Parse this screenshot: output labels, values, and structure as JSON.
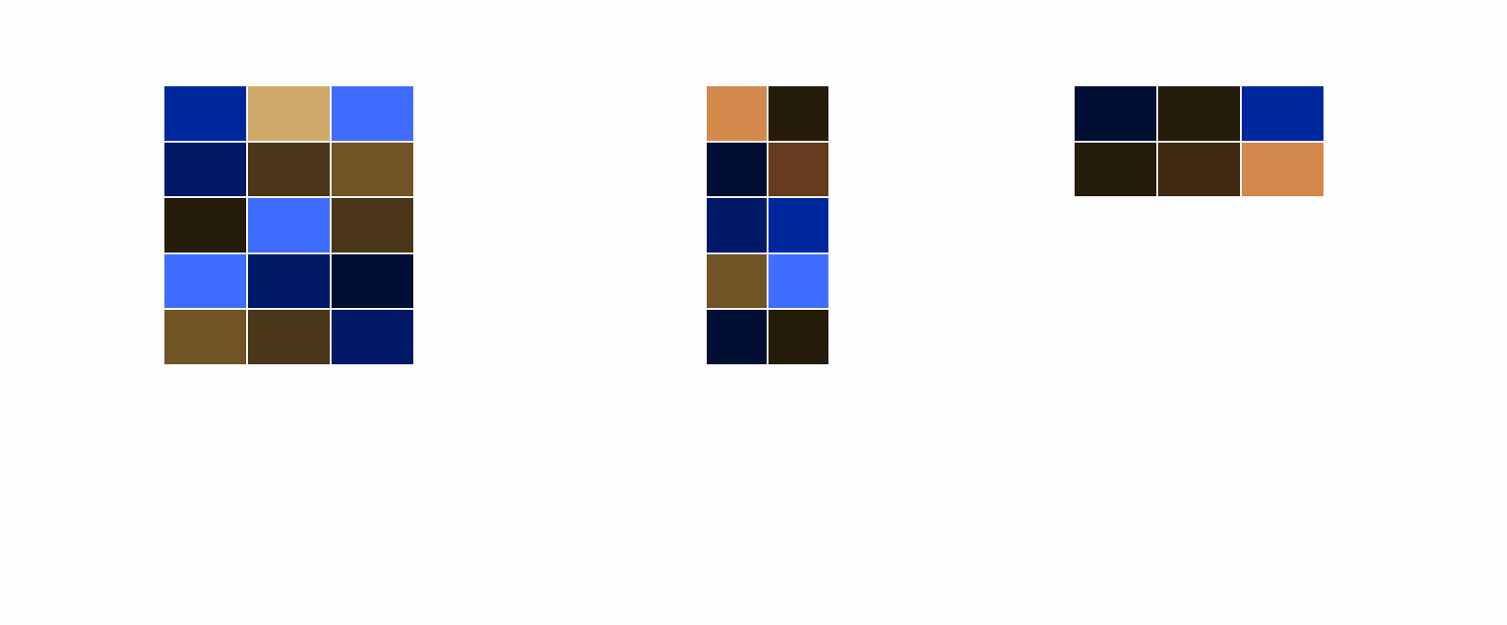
{
  "swatch_grids": [
    {
      "rows": 5,
      "cols": 3,
      "colors": [
        [
          "#00289e",
          "#d0aa6b",
          "#3f6dff"
        ],
        [
          "#001a68",
          "#4a3618",
          "#715423"
        ],
        [
          "#251c0c",
          "#3f6dff",
          "#4a3618"
        ],
        [
          "#3f6dff",
          "#001a68",
          "#000f33"
        ],
        [
          "#715423",
          "#4a3618",
          "#001a68"
        ]
      ]
    },
    {
      "rows": 5,
      "cols": 2,
      "colors": [
        [
          "#d3894b",
          "#251c0c"
        ],
        [
          "#000f33",
          "#643b1c"
        ],
        [
          "#001a68",
          "#00289e"
        ],
        [
          "#715423",
          "#3f6dff"
        ],
        [
          "#000f33",
          "#251c0c"
        ]
      ]
    },
    {
      "rows": 2,
      "cols": 3,
      "colors": [
        [
          "#000f33",
          "#251c0c",
          "#00289e"
        ],
        [
          "#251c0c",
          "#412813",
          "#d3894b"
        ]
      ]
    }
  ]
}
